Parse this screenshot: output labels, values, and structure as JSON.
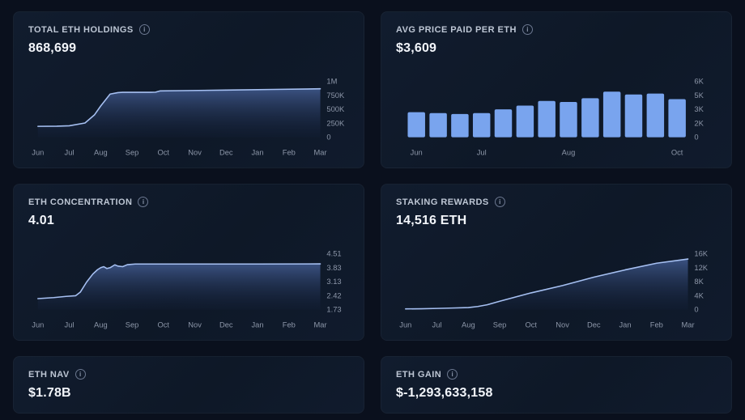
{
  "colors": {
    "page_bg": "#0a101d",
    "card_bg": "#101b2d",
    "title": "#bdc6d4",
    "value": "#f2f5fa",
    "axis_label": "#8d97a9",
    "line": "#a6c0f2",
    "area_top": "#3d5586",
    "area_bottom": "#131f38",
    "bar": "#79a4ee"
  },
  "icons": {
    "info": "i"
  },
  "cards": [
    {
      "title": "TOTAL ETH HOLDINGS",
      "value": "868,699"
    },
    {
      "title": "AVG PRICE PAID PER ETH",
      "value": "$3,609"
    },
    {
      "title": "ETH CONCENTRATION",
      "value": "4.01"
    },
    {
      "title": "STAKING REWARDS",
      "value": "14,516 ETH"
    },
    {
      "title": "ETH NAV",
      "value": "$1.78B"
    },
    {
      "title": "ETH GAIN",
      "value": "$-1,293,633,158"
    }
  ],
  "chart_data": [
    {
      "type": "area",
      "title": "TOTAL ETH HOLDINGS",
      "x_labels": [
        "Jun",
        "Jul",
        "Aug",
        "Sep",
        "Oct",
        "Nov",
        "Dec",
        "Jan",
        "Feb",
        "Mar"
      ],
      "y_tick_labels": [
        "0",
        "250K",
        "500K",
        "750K",
        "1M"
      ],
      "xlim": [
        0,
        9
      ],
      "ylim": [
        0,
        1000000
      ],
      "grid": false,
      "legend": "none",
      "points": [
        [
          0,
          195000
        ],
        [
          0.6,
          198000
        ],
        [
          1,
          205000
        ],
        [
          1.5,
          255000
        ],
        [
          1.8,
          400000
        ],
        [
          2,
          560000
        ],
        [
          2.3,
          775000
        ],
        [
          2.55,
          800000
        ],
        [
          2.7,
          806000
        ],
        [
          3.6,
          806000
        ],
        [
          3.75,
          808000
        ],
        [
          3.9,
          832000
        ],
        [
          4.6,
          836000
        ],
        [
          6,
          846000
        ],
        [
          7.5,
          857000
        ],
        [
          9,
          868699
        ]
      ]
    },
    {
      "type": "bar",
      "title": "AVG PRICE PAID PER ETH",
      "values": [
        2700,
        2600,
        2500,
        2600,
        3000,
        3400,
        3900,
        3800,
        4200,
        4900,
        4600,
        4700,
        4100
      ],
      "y_tick_labels": [
        "0",
        "2K",
        "3K",
        "5K",
        "6K"
      ],
      "ylim": [
        0,
        6000
      ],
      "grid": false,
      "legend": "none",
      "x_tick_positions": [
        {
          "index": 0,
          "label": "Jun"
        },
        {
          "index": 3,
          "label": "Jul"
        },
        {
          "index": 7,
          "label": "Aug"
        },
        {
          "index": 12,
          "label": "Oct"
        }
      ]
    },
    {
      "type": "area",
      "title": "ETH CONCENTRATION",
      "x_labels": [
        "Jun",
        "Jul",
        "Aug",
        "Sep",
        "Oct",
        "Nov",
        "Dec",
        "Jan",
        "Feb",
        "Mar"
      ],
      "y_tick_labels": [
        "1.73",
        "2.42",
        "3.13",
        "3.83",
        "4.51"
      ],
      "xlim": [
        0,
        9
      ],
      "ylim": [
        1.73,
        4.51
      ],
      "grid": false,
      "legend": "none",
      "points": [
        [
          0,
          2.28
        ],
        [
          0.5,
          2.33
        ],
        [
          0.9,
          2.39
        ],
        [
          1.2,
          2.42
        ],
        [
          1.35,
          2.6
        ],
        [
          1.55,
          3.1
        ],
        [
          1.75,
          3.5
        ],
        [
          1.9,
          3.72
        ],
        [
          2.0,
          3.82
        ],
        [
          2.1,
          3.87
        ],
        [
          2.2,
          3.78
        ],
        [
          2.3,
          3.82
        ],
        [
          2.45,
          3.96
        ],
        [
          2.55,
          3.9
        ],
        [
          2.7,
          3.87
        ],
        [
          2.85,
          3.97
        ],
        [
          3.1,
          4.0
        ],
        [
          5,
          4.0
        ],
        [
          7,
          4.0
        ],
        [
          9,
          4.01
        ]
      ]
    },
    {
      "type": "area",
      "title": "STAKING REWARDS",
      "x_labels": [
        "Jun",
        "Jul",
        "Aug",
        "Sep",
        "Oct",
        "Nov",
        "Dec",
        "Jan",
        "Feb",
        "Mar"
      ],
      "y_tick_labels": [
        "0",
        "4K",
        "8K",
        "12K",
        "16K"
      ],
      "xlim": [
        0,
        9
      ],
      "ylim": [
        0,
        16000
      ],
      "grid": false,
      "legend": "none",
      "points": [
        [
          0,
          200
        ],
        [
          0.5,
          250
        ],
        [
          1,
          350
        ],
        [
          1.5,
          450
        ],
        [
          2,
          600
        ],
        [
          2.3,
          900
        ],
        [
          2.6,
          1400
        ],
        [
          3,
          2400
        ],
        [
          4,
          4800
        ],
        [
          5,
          6900
        ],
        [
          6,
          9300
        ],
        [
          7,
          11400
        ],
        [
          8,
          13300
        ],
        [
          9,
          14516
        ]
      ]
    }
  ]
}
